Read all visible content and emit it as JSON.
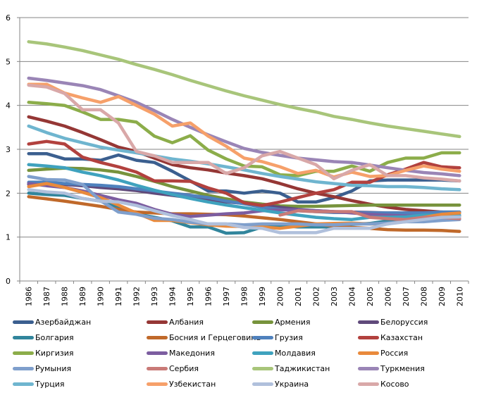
{
  "chart_data": {
    "type": "line",
    "title": "",
    "xlabel": "",
    "ylabel": "",
    "ylim": [
      0,
      6
    ],
    "yticks": [
      "0",
      "1",
      "2",
      "3",
      "4",
      "5",
      "6"
    ],
    "grid": true,
    "legend_position": "bottom",
    "x": [
      "1986",
      "1987",
      "1988",
      "1989",
      "1990",
      "1991",
      "1992",
      "1993",
      "1994",
      "1995",
      "1996",
      "1997",
      "1998",
      "1999",
      "2000",
      "2001",
      "2002",
      "2003",
      "2004",
      "2005",
      "2006",
      "2007",
      "2008",
      "2009",
      "2010"
    ],
    "series": [
      {
        "name": "Азербайджан",
        "color": "#3B5F8F",
        "values": [
          2.9,
          2.9,
          2.78,
          2.78,
          2.75,
          2.87,
          2.75,
          2.7,
          2.5,
          2.28,
          2.05,
          2.05,
          2.0,
          2.05,
          2.0,
          1.8,
          1.8,
          1.9,
          2.05,
          2.28,
          2.3,
          2.3,
          2.3,
          2.3,
          2.28
        ]
      },
      {
        "name": "Албания",
        "color": "#953735",
        "values": [
          3.74,
          3.64,
          3.53,
          3.38,
          3.22,
          3.05,
          2.95,
          2.8,
          2.65,
          2.58,
          2.53,
          2.46,
          2.4,
          2.33,
          2.22,
          2.1,
          2.0,
          1.92,
          1.83,
          1.75,
          1.68,
          1.63,
          1.6,
          1.57,
          1.55
        ]
      },
      {
        "name": "Армения",
        "color": "#77933C",
        "values": [
          2.52,
          2.55,
          2.57,
          2.56,
          2.53,
          2.48,
          2.38,
          2.27,
          2.15,
          2.05,
          1.95,
          1.87,
          1.8,
          1.75,
          1.71,
          1.7,
          1.7,
          1.71,
          1.72,
          1.73,
          1.73,
          1.73,
          1.73,
          1.73,
          1.73
        ]
      },
      {
        "name": "Белоруссия",
        "color": "#604A7B",
        "values": [
          2.2,
          2.2,
          2.2,
          2.17,
          2.13,
          2.1,
          2.06,
          2.0,
          1.95,
          1.9,
          1.85,
          1.8,
          1.77,
          1.72,
          1.68,
          1.63,
          1.6,
          1.58,
          1.57,
          1.56,
          1.55,
          1.55,
          1.55,
          1.56,
          1.56
        ]
      },
      {
        "name": "Болгария",
        "color": "#31859C",
        "values": [
          2.0,
          1.97,
          1.95,
          1.88,
          1.82,
          1.68,
          1.53,
          1.45,
          1.37,
          1.23,
          1.23,
          1.09,
          1.1,
          1.23,
          1.26,
          1.23,
          1.23,
          1.23,
          1.29,
          1.31,
          1.37,
          1.42,
          1.48,
          1.57,
          1.57
        ]
      },
      {
        "name": "Босния и Герцеговина",
        "color": "#C0692A",
        "values": [
          1.92,
          1.87,
          1.82,
          1.76,
          1.7,
          1.63,
          1.57,
          1.55,
          1.53,
          1.53,
          1.52,
          1.51,
          1.48,
          1.44,
          1.4,
          1.35,
          1.3,
          1.25,
          1.22,
          1.2,
          1.17,
          1.16,
          1.16,
          1.15,
          1.13
        ]
      },
      {
        "name": "Грузия",
        "color": "#4F81BD",
        "values": [
          2.25,
          2.25,
          2.22,
          2.2,
          2.18,
          2.15,
          2.1,
          2.05,
          2.0,
          1.95,
          1.9,
          1.82,
          1.76,
          1.68,
          1.63,
          1.6,
          1.58,
          1.56,
          1.56,
          1.55,
          1.55,
          1.55,
          1.55,
          1.57,
          1.57
        ]
      },
      {
        "name": "Казахстан",
        "color": "#B2413E",
        "values": [
          3.12,
          3.18,
          3.12,
          2.82,
          2.7,
          2.6,
          2.48,
          2.28,
          2.28,
          2.27,
          2.12,
          2.0,
          1.78,
          1.72,
          1.8,
          1.9,
          2.0,
          2.08,
          2.25,
          2.25,
          2.42,
          2.55,
          2.7,
          2.6,
          2.58
        ]
      },
      {
        "name": "Киргизия",
        "color": "#8CAD4A",
        "values": [
          4.07,
          4.04,
          4.0,
          3.85,
          3.68,
          3.68,
          3.62,
          3.3,
          3.15,
          3.31,
          2.98,
          2.78,
          2.62,
          2.6,
          2.42,
          2.4,
          2.5,
          2.5,
          2.62,
          2.5,
          2.7,
          2.8,
          2.8,
          2.92,
          2.92
        ]
      },
      {
        "name": "Македония",
        "color": "#7C5DA0",
        "values": [
          2.22,
          2.17,
          2.13,
          2.05,
          1.95,
          1.85,
          1.77,
          1.63,
          1.52,
          1.47,
          1.5,
          1.53,
          1.55,
          1.6,
          1.62,
          1.62,
          1.6,
          1.58,
          1.55,
          1.52,
          1.5,
          1.48,
          1.48,
          1.47,
          1.47
        ]
      },
      {
        "name": "Молдавия",
        "color": "#3FA2BE",
        "values": [
          2.65,
          2.62,
          2.58,
          2.48,
          2.4,
          2.3,
          2.18,
          2.07,
          1.97,
          1.88,
          1.8,
          1.73,
          1.67,
          1.61,
          1.55,
          1.5,
          1.45,
          1.42,
          1.4,
          1.45,
          1.45,
          1.46,
          1.5,
          1.5,
          1.5
        ]
      },
      {
        "name": "Россия",
        "color": "#E98A3C",
        "values": [
          2.15,
          2.22,
          2.13,
          2.02,
          1.9,
          1.73,
          1.55,
          1.38,
          1.38,
          1.33,
          1.28,
          1.25,
          1.24,
          1.23,
          1.2,
          1.25,
          1.3,
          1.31,
          1.32,
          1.3,
          1.3,
          1.38,
          1.45,
          1.52,
          1.55
        ]
      },
      {
        "name": "Румыния",
        "color": "#7F9FCC",
        "values": [
          2.38,
          2.31,
          2.3,
          2.2,
          1.83,
          1.57,
          1.52,
          1.43,
          1.4,
          1.34,
          1.3,
          1.3,
          1.28,
          1.3,
          1.3,
          1.3,
          1.28,
          1.28,
          1.3,
          1.3,
          1.32,
          1.35,
          1.35,
          1.38,
          1.4
        ]
      },
      {
        "name": "Сербия",
        "color": "#C97A77",
        "values": [
          null,
          null,
          null,
          null,
          null,
          null,
          null,
          null,
          null,
          null,
          null,
          null,
          null,
          null,
          1.5,
          1.6,
          1.58,
          1.58,
          1.58,
          1.45,
          1.42,
          1.4,
          1.45,
          1.45,
          1.42
        ]
      },
      {
        "name": "Таджикистан",
        "color": "#A8C57A",
        "values": [
          5.45,
          5.4,
          5.33,
          5.25,
          5.15,
          5.05,
          4.93,
          4.82,
          4.7,
          4.57,
          4.45,
          4.33,
          4.22,
          4.12,
          4.02,
          3.93,
          3.85,
          3.75,
          3.68,
          3.6,
          3.53,
          3.47,
          3.41,
          3.35,
          3.29
        ]
      },
      {
        "name": "Туркмения",
        "color": "#9A85B6",
        "values": [
          4.62,
          4.57,
          4.51,
          4.45,
          4.36,
          4.22,
          4.07,
          3.88,
          3.68,
          3.5,
          3.33,
          3.17,
          3.02,
          2.93,
          2.86,
          2.8,
          2.76,
          2.72,
          2.7,
          2.64,
          2.58,
          2.52,
          2.47,
          2.44,
          2.4
        ]
      },
      {
        "name": "Турция",
        "color": "#6FB5CF",
        "values": [
          3.53,
          3.38,
          3.25,
          3.15,
          3.05,
          2.98,
          2.92,
          2.85,
          2.78,
          2.73,
          2.67,
          2.6,
          2.53,
          2.45,
          2.38,
          2.32,
          2.26,
          2.22,
          2.18,
          2.17,
          2.15,
          2.15,
          2.13,
          2.1,
          2.08
        ]
      },
      {
        "name": "Узбекистан",
        "color": "#F6A06A",
        "values": [
          4.48,
          4.48,
          4.28,
          4.17,
          4.07,
          4.2,
          4.0,
          3.8,
          3.53,
          3.6,
          3.3,
          3.07,
          2.8,
          2.72,
          2.6,
          2.45,
          2.52,
          2.37,
          2.48,
          2.38,
          2.4,
          2.52,
          2.62,
          2.55,
          2.5
        ]
      },
      {
        "name": "Украина",
        "color": "#B0C0DC",
        "values": [
          2.08,
          2.03,
          2.0,
          1.88,
          1.82,
          1.8,
          1.72,
          1.6,
          1.49,
          1.4,
          1.3,
          1.3,
          1.22,
          1.2,
          1.1,
          1.1,
          1.1,
          1.2,
          1.2,
          1.2,
          1.3,
          1.35,
          1.4,
          1.45,
          1.46
        ]
      },
      {
        "name": "Косово",
        "color": "#D9A8A8",
        "values": [
          4.46,
          4.42,
          4.27,
          3.9,
          3.9,
          3.6,
          2.95,
          2.85,
          2.7,
          2.7,
          2.7,
          2.45,
          2.58,
          2.85,
          2.95,
          2.8,
          2.65,
          2.33,
          2.52,
          2.65,
          2.4,
          2.4,
          2.35,
          2.32,
          2.28
        ]
      }
    ]
  }
}
